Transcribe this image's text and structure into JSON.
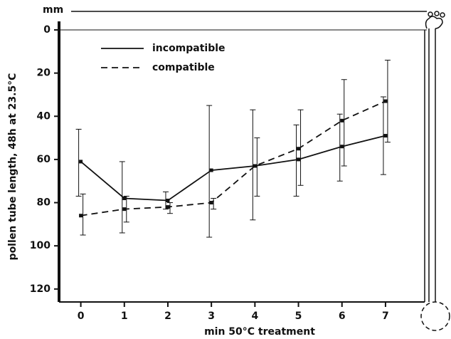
{
  "chart_data": {
    "type": "line",
    "unit_label": "mm",
    "x_label": "min 50°C treatment",
    "y_label": "pollen tube length, 48h at 23.5°C",
    "x": [
      0,
      1,
      2,
      3,
      4,
      5,
      6,
      7
    ],
    "xlim": [
      -0.5,
      7.9
    ],
    "xticks": [
      0,
      1,
      2,
      3,
      4,
      5,
      6,
      7
    ],
    "ylim": [
      0,
      126
    ],
    "yticks": [
      0,
      20,
      40,
      60,
      80,
      100,
      120
    ],
    "y_inverted": true,
    "series": [
      {
        "name": "incompatible",
        "color": "#111111",
        "style": "solid",
        "values": [
          61,
          78,
          79,
          65,
          63,
          60,
          54,
          49
        ],
        "lower": [
          46,
          61,
          75,
          35,
          37,
          44,
          39,
          31
        ],
        "upper": [
          77,
          94,
          83,
          96,
          88,
          77,
          70,
          67
        ]
      },
      {
        "name": "compatible",
        "color": "#111111",
        "style": "dashed",
        "values": [
          86,
          83,
          82,
          80,
          63,
          55,
          42,
          33
        ],
        "lower": [
          76,
          77,
          80,
          78,
          50,
          37,
          23,
          14
        ],
        "upper": [
          95,
          89,
          85,
          83,
          77,
          72,
          63,
          52
        ]
      }
    ]
  }
}
